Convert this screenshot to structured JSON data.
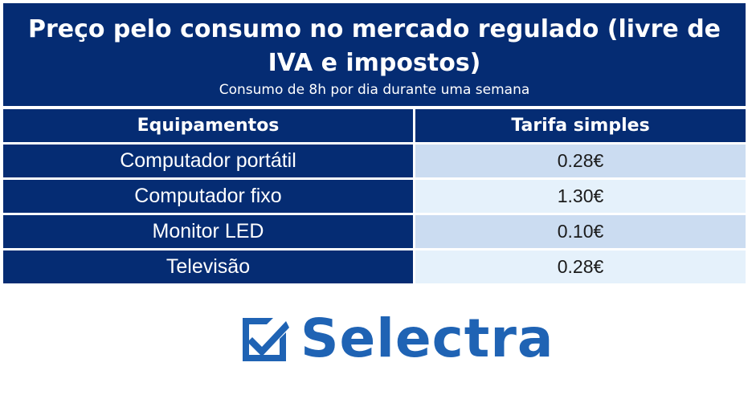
{
  "header": {
    "title": "Preço pelo consumo no mercado regulado (livre de IVA e impostos)",
    "subtitle": "Consumo de 8h por dia durante uma semana"
  },
  "table": {
    "columns": [
      "Equipamentos",
      "Tarifa simples"
    ],
    "rows": [
      {
        "equipment": "Computador portátil",
        "price": "0.28€"
      },
      {
        "equipment": "Computador fixo",
        "price": "1.30€"
      },
      {
        "equipment": "Monitor LED",
        "price": "0.10€"
      },
      {
        "equipment": "Televisão",
        "price": "0.28€"
      }
    ]
  },
  "logo": {
    "text": "Selectra",
    "icon": "checkmark-box-icon",
    "color": "#1f63b4"
  },
  "colors": {
    "navy": "#052c73",
    "row_light_blue": "#cbdcf1",
    "row_pale_blue": "#e5f1fb"
  }
}
